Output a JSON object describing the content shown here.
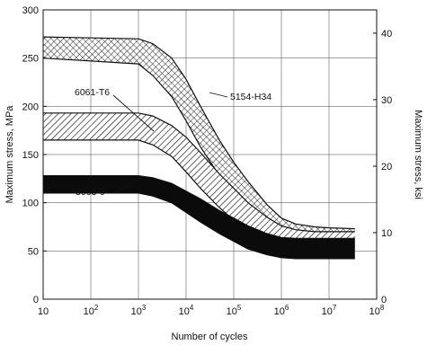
{
  "chart_data": {
    "type": "area",
    "xlabel": "Number of cycles",
    "ylabel": "Maximum stress, MPa",
    "y2label": "Maximum stress, ksi",
    "x_scale": "log",
    "xlim": [
      10,
      100000000
    ],
    "ylim": [
      0,
      300
    ],
    "y2lim": [
      0,
      43.5
    ],
    "grid": true,
    "x_ticks": [
      {
        "base": "10",
        "exp": ""
      },
      {
        "base": "10",
        "exp": "2"
      },
      {
        "base": "10",
        "exp": "3"
      },
      {
        "base": "10",
        "exp": "4"
      },
      {
        "base": "10",
        "exp": "5"
      },
      {
        "base": "10",
        "exp": "6"
      },
      {
        "base": "10",
        "exp": "7"
      },
      {
        "base": "10",
        "exp": "8"
      }
    ],
    "y_ticks": [
      "0",
      "50",
      "100",
      "150",
      "200",
      "250",
      "300"
    ],
    "y2_ticks": [
      "0",
      "10",
      "20",
      "30",
      "40"
    ],
    "series": [
      {
        "name": "5154-H34",
        "fill": "crosshatch",
        "x": [
          10,
          1000,
          2000,
          5000,
          10000,
          20000,
          50000,
          100000,
          200000,
          500000,
          1000000,
          2000000,
          5000000,
          10000000,
          35000000
        ],
        "upper": [
          272,
          270,
          265,
          250,
          228,
          200,
          165,
          142,
          122,
          98,
          84,
          78,
          75,
          74,
          73
        ],
        "lower": [
          250,
          244,
          232,
          210,
          185,
          158,
          128,
          110,
          95,
          80,
          73,
          70,
          68,
          67,
          67
        ]
      },
      {
        "name": "6061-T6",
        "fill": "diagonal",
        "x": [
          10,
          1000,
          2000,
          5000,
          10000,
          20000,
          50000,
          100000,
          200000,
          500000,
          1000000,
          2000000,
          5000000,
          10000000,
          35000000
        ],
        "upper": [
          193,
          193,
          190,
          180,
          168,
          152,
          130,
          115,
          100,
          85,
          76,
          72,
          70,
          70,
          70
        ],
        "lower": [
          165,
          165,
          160,
          148,
          132,
          115,
          95,
          82,
          72,
          63,
          58,
          56,
          55,
          55,
          55
        ]
      },
      {
        "name": "3003-0",
        "fill": "solid",
        "x": [
          10,
          1000,
          2000,
          5000,
          10000,
          20000,
          50000,
          100000,
          200000,
          500000,
          1000000,
          2000000,
          5000000,
          10000000,
          35000000
        ],
        "upper": [
          128,
          128,
          126,
          120,
          112,
          104,
          92,
          84,
          76,
          68,
          64,
          63,
          63,
          63,
          63
        ],
        "lower": [
          110,
          110,
          107,
          100,
          90,
          80,
          68,
          60,
          52,
          46,
          43,
          42,
          42,
          42,
          42
        ]
      }
    ],
    "annotations": [
      {
        "text": "6061-T6",
        "series": "6061-T6"
      },
      {
        "text": "5154-H34",
        "series": "5154-H34"
      },
      {
        "text": "3003-0",
        "series": "3003-0"
      }
    ]
  }
}
